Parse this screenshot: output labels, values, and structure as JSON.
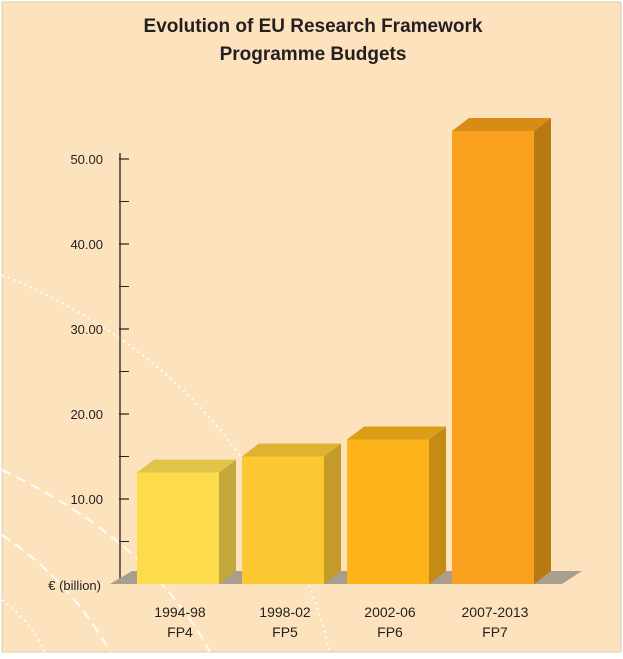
{
  "chart_data": {
    "type": "bar",
    "title": "Evolution of EU Research Framework",
    "subtitle": "Programme Budgets",
    "ylabel": "€ (billion)",
    "xlabel": "",
    "categories": [
      {
        "period": "1994-98",
        "programme": "FP4"
      },
      {
        "period": "1998-02",
        "programme": "FP5"
      },
      {
        "period": "2002-06",
        "programme": "FP6"
      },
      {
        "period": "2007-2013",
        "programme": "FP7"
      }
    ],
    "values": [
      13.1,
      15.0,
      17.0,
      53.3
    ],
    "ylim": [
      0,
      50
    ],
    "yticks": [
      "10.00",
      "20.00",
      "30.00",
      "40.00",
      "50.00"
    ],
    "minor_ticks": true,
    "grid": false,
    "legend": "none",
    "bar_colors": [
      "#fddc4c",
      "#fcc832",
      "#fcb418",
      "#f9a11e"
    ],
    "side_colors": [
      "#c4a73a",
      "#c49a28",
      "#c48c14",
      "#b87912"
    ],
    "top_colors": [
      "#e0c44a",
      "#e0b232",
      "#dc9e18",
      "#d88c16"
    ],
    "background_color": "#fde3bd",
    "floor_color": "#a79e8e"
  }
}
